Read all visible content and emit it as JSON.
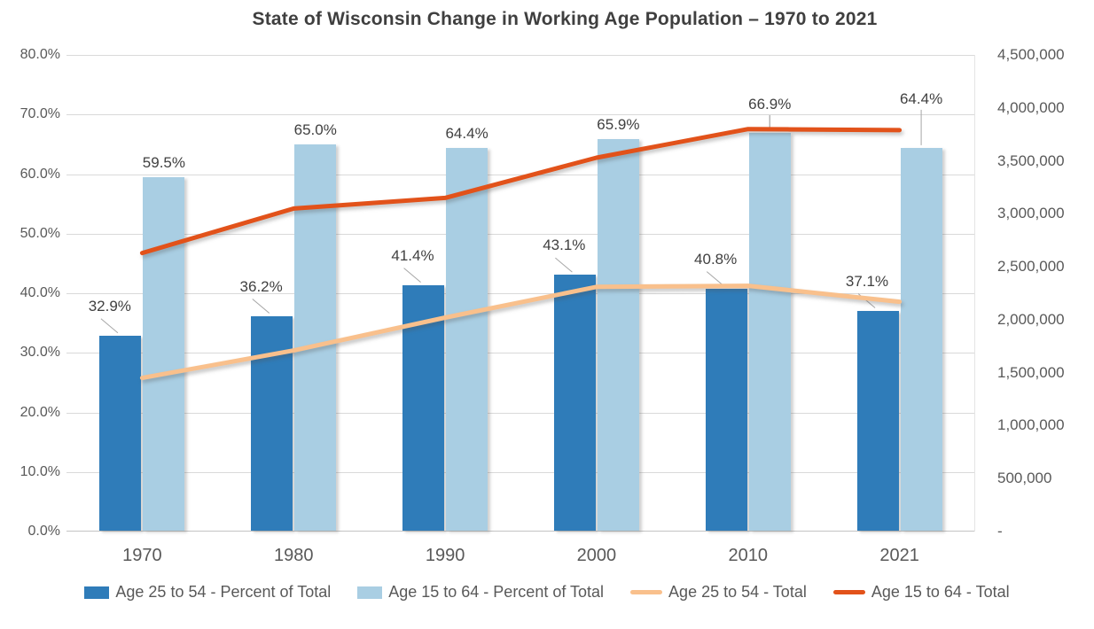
{
  "chart_data": {
    "type": "combo-bar-line",
    "title": "State of Wisconsin Change in Working Age Population – 1970 to 2021",
    "categories": [
      "1970",
      "1980",
      "1990",
      "2000",
      "2010",
      "2021"
    ],
    "series": [
      {
        "name": "Age 25 to 54 - Percent of Total",
        "type": "bar",
        "axis": "left",
        "color": "#2f7cb9",
        "values": [
          32.9,
          36.2,
          41.4,
          43.1,
          40.8,
          37.1
        ],
        "labels": [
          "32.9%",
          "36.2%",
          "41.4%",
          "43.1%",
          "40.8%",
          "37.1%"
        ]
      },
      {
        "name": "Age 15 to 64 - Percent of Total",
        "type": "bar",
        "axis": "left",
        "color": "#a9cee3",
        "values": [
          59.5,
          65.0,
          64.4,
          65.9,
          66.9,
          64.4
        ],
        "labels": [
          "59.5%",
          "65.0%",
          "64.4%",
          "65.9%",
          "66.9%",
          "64.4%"
        ]
      },
      {
        "name": "Age 25 to 54 - Total",
        "type": "line",
        "axis": "right",
        "color": "#f9c08c",
        "values": [
          1450000,
          1710000,
          2020000,
          2310000,
          2320000,
          2170000
        ]
      },
      {
        "name": "Age 15 to 64 - Total",
        "type": "line",
        "axis": "right",
        "color": "#e2521a",
        "values": [
          2630000,
          3050000,
          3150000,
          3530000,
          3800000,
          3790000
        ]
      }
    ],
    "left_axis": {
      "min": 0,
      "max": 80,
      "ticks": [
        "80.0%",
        "70.0%",
        "60.0%",
        "50.0%",
        "40.0%",
        "30.0%",
        "20.0%",
        "10.0%",
        "0.0%"
      ]
    },
    "right_axis": {
      "min": 0,
      "max": 4500000,
      "ticks": [
        "4,500,000",
        "4,000,000",
        "3,500,000",
        "3,000,000",
        "2,500,000",
        "2,000,000",
        "1,500,000",
        "1,000,000",
        "500,000",
        "-"
      ]
    },
    "grid": "horizontal",
    "legend_position": "bottom"
  },
  "legend": {
    "items": [
      {
        "label": "Age 25 to 54 - Percent of Total",
        "swatch": "square",
        "color": "#2f7cb9"
      },
      {
        "label": "Age 15 to 64 - Percent of Total",
        "swatch": "square",
        "color": "#a9cee3"
      },
      {
        "label": "Age 25 to 54 - Total",
        "swatch": "line",
        "color": "#f9c08c"
      },
      {
        "label": "Age 15 to 64 - Total",
        "swatch": "line",
        "color": "#e2521a"
      }
    ]
  },
  "colors": {
    "gridline": "#d9d9d9",
    "axis_text": "#595959",
    "title_text": "#3f3f3f",
    "data_label_text": "#404040",
    "leader_line": "#a6a6a6"
  }
}
